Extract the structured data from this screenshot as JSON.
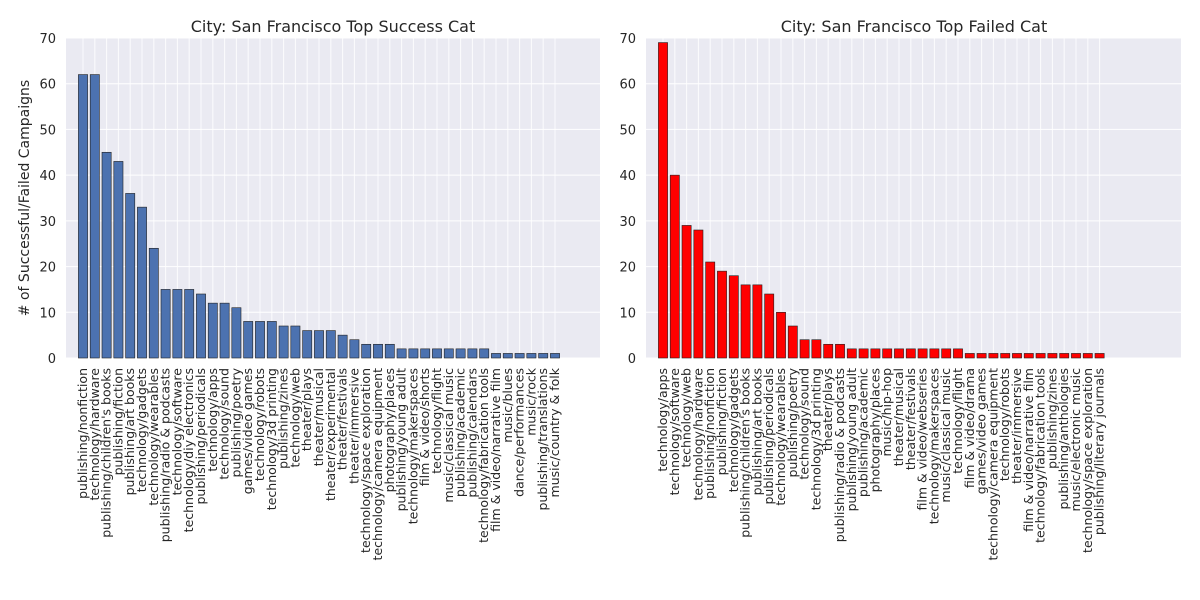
{
  "chart_data": [
    {
      "type": "bar",
      "title": "City: San Francisco Top Success Cat",
      "xlabel": "",
      "ylabel": "# of Successful/Failed Campaigns",
      "ylim": [
        0,
        70
      ],
      "yticks": [
        0,
        10,
        20,
        30,
        40,
        50,
        60,
        70
      ],
      "grid": true,
      "bar_color": "#4c72b0",
      "categories": [
        "publishing/nonfiction",
        "technology/hardware",
        "publishing/children's books",
        "publishing/fiction",
        "publishing/art books",
        "technology/gadgets",
        "technology/wearables",
        "publishing/radio & podcasts",
        "technology/software",
        "technology/diy electronics",
        "publishing/periodicals",
        "technology/apps",
        "technology/sound",
        "publishing/poetry",
        "games/video games",
        "technology/robots",
        "technology/3d printing",
        "publishing/zines",
        "technology/web",
        "theater/plays",
        "theater/musical",
        "theater/experimental",
        "theater/festivals",
        "theater/immersive",
        "technology/space exploration",
        "technology/camera equipment",
        "photography/places",
        "publishing/young adult",
        "technology/makerspaces",
        "film & video/shorts",
        "technology/flight",
        "music/classical music",
        "publishing/academic",
        "publishing/calendars",
        "technology/fabrication tools",
        "film & video/narrative film",
        "music/blues",
        "dance/performances",
        "music/rock",
        "publishing/translations",
        "music/country & folk"
      ],
      "values": [
        62,
        62,
        45,
        43,
        36,
        33,
        24,
        15,
        15,
        15,
        14,
        12,
        12,
        11,
        8,
        8,
        8,
        7,
        7,
        6,
        6,
        6,
        5,
        4,
        3,
        3,
        3,
        2,
        2,
        2,
        2,
        2,
        2,
        2,
        2,
        1,
        1,
        1,
        1,
        1,
        1
      ]
    },
    {
      "type": "bar",
      "title": "City: San Francisco Top Failed Cat",
      "xlabel": "",
      "ylabel": "",
      "ylim": [
        0,
        70
      ],
      "yticks": [
        0,
        10,
        20,
        30,
        40,
        50,
        60,
        70
      ],
      "grid": true,
      "bar_color": "#ff0000",
      "categories": [
        "technology/apps",
        "technology/software",
        "technology/web",
        "technology/hardware",
        "publishing/nonfiction",
        "publishing/fiction",
        "technology/gadgets",
        "publishing/children's books",
        "publishing/art books",
        "publishing/periodicals",
        "technology/wearables",
        "publishing/poetry",
        "technology/sound",
        "technology/3d printing",
        "theater/plays",
        "publishing/radio & podcasts",
        "publishing/young adult",
        "publishing/academic",
        "photography/places",
        "music/hip-hop",
        "theater/musical",
        "theater/festivals",
        "film & video/webseries",
        "technology/makerspaces",
        "music/classical music",
        "technology/flight",
        "film & video/drama",
        "games/video games",
        "technology/camera equipment",
        "technology/robots",
        "theater/immersive",
        "film & video/narrative film",
        "technology/fabrication tools",
        "publishing/zines",
        "publishing/anthologies",
        "music/electronic music",
        "technology/space exploration",
        "publishing/literary journals"
      ],
      "values": [
        69,
        40,
        29,
        28,
        21,
        19,
        18,
        16,
        16,
        14,
        10,
        7,
        4,
        4,
        3,
        3,
        2,
        2,
        2,
        2,
        2,
        2,
        2,
        2,
        2,
        2,
        1,
        1,
        1,
        1,
        1,
        1,
        1,
        1,
        1,
        1,
        1,
        1
      ]
    }
  ]
}
